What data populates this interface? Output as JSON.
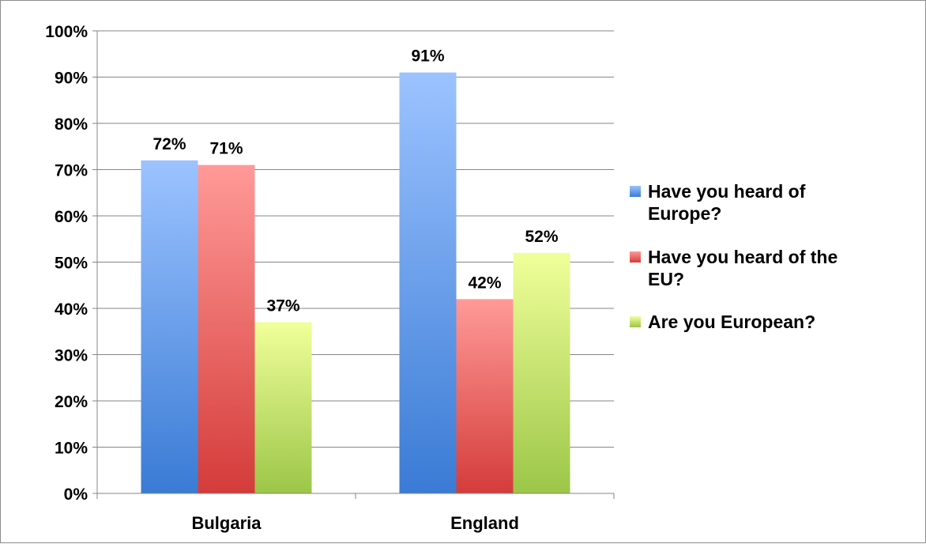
{
  "chart_data": {
    "type": "bar",
    "categories": [
      "Bulgaria",
      "England"
    ],
    "series": [
      {
        "name": "Have you heard of Europe?",
        "values": [
          72,
          91
        ],
        "value_labels": [
          "72%",
          "91%"
        ],
        "color": "#4f81bd",
        "light": "#9cc3ff",
        "dark": "#3a7bd5"
      },
      {
        "name": "Have you heard of the EU?",
        "values": [
          71,
          42
        ],
        "value_labels": [
          "71%",
          "42%"
        ],
        "color": "#c0504d",
        "light": "#ff9a98",
        "dark": "#d43c3a"
      },
      {
        "name": "Are you European?",
        "values": [
          37,
          52
        ],
        "value_labels": [
          "37%",
          "52%"
        ],
        "color": "#9bbb59",
        "light": "#f0ff9a",
        "dark": "#9cc648"
      }
    ],
    "ylim": [
      0,
      100
    ],
    "yticks": [
      "0%",
      "10%",
      "20%",
      "30%",
      "40%",
      "50%",
      "60%",
      "70%",
      "80%",
      "90%",
      "100%"
    ],
    "legend_lines": [
      [
        "Have you heard of",
        "Europe?"
      ],
      [
        "Have you heard of the",
        "EU?"
      ],
      [
        "Are you European?"
      ]
    ],
    "grid": true,
    "legend_position": "right"
  }
}
